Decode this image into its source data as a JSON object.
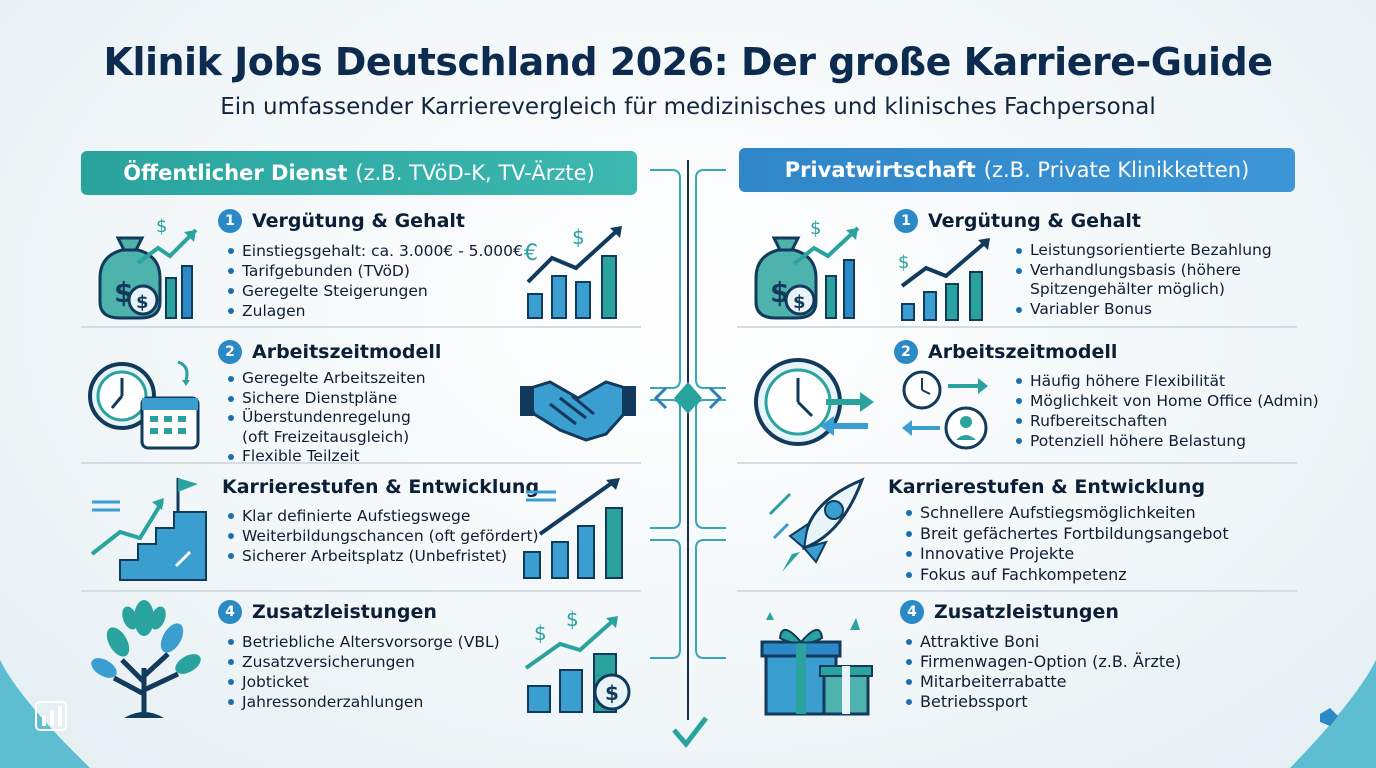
{
  "title": "Klinik Jobs Deutschland 2026: Der große Karriere-Guide",
  "subtitle": "Ein umfassender Karrierevergleich für medizinisches und klinisches Fachpersonal",
  "left": {
    "header_bold": "Öffentlicher Dienst",
    "header_light": "(z.B. TVöD-K, TV-Ärzte)",
    "sections": [
      {
        "num": "1",
        "title": "Vergütung & Gehalt",
        "bullets": [
          "Einstiegsgehalt: ca. 3.000€ - 5.000€",
          "Tarifgebunden (TVöD)",
          "Geregelte Steigerungen",
          "Zulagen"
        ]
      },
      {
        "num": "2",
        "title": "Arbeitszeitmodell",
        "bullets": [
          "Geregelte Arbeitszeiten",
          "Sichere Dienstpläne",
          "Überstundenregelung",
          "(oft Freizeitausgleich)",
          "Flexible Teilzeit"
        ]
      },
      {
        "num": "",
        "title": "Karrierestufen & Entwicklung",
        "bullets": [
          "Klar definierte Aufstiegswege",
          "Weiterbildungschancen (oft gefördert)",
          "Sicherer Arbeitsplatz (Unbefristet)"
        ]
      },
      {
        "num": "4",
        "title": "Zusatzleistungen",
        "bullets": [
          "Betriebliche Altersvorsorge (VBL)",
          "Zusatzversicherungen",
          "Jobticket",
          "Jahressonderzahlungen"
        ]
      }
    ]
  },
  "right": {
    "header_bold": "Privatwirtschaft",
    "header_light": "(z.B. Private Klinikketten)",
    "sections": [
      {
        "num": "1",
        "title": "Vergütung & Gehalt",
        "bullets": [
          "Leistungsorientierte Bezahlung",
          "Verhandlungsbasis (höhere",
          "Spitzengehälter möglich)",
          "Variabler Bonus"
        ]
      },
      {
        "num": "2",
        "title": "Arbeitszeitmodell",
        "bullets": [
          "Häufig höhere Flexibilität",
          "Möglichkeit von Home Office (Admin)",
          "Rufbereitschaften",
          "Potenziell höhere Belastung"
        ]
      },
      {
        "num": "",
        "title": "Karrierestufen & Entwicklung",
        "bullets": [
          "Schnellere Aufstiegsmöglichkeiten",
          "Breit gefächertes Fortbildungsangebot",
          "Innovative Projekte",
          "Fokus auf Fachkompetenz"
        ]
      },
      {
        "num": "4",
        "title": "Zusatzleistungen",
        "bullets": [
          "Attraktive Boni",
          "Firmenwagen-Option (z.B. Ärzte)",
          "Mitarbeiterrabatte",
          "Betriebssport"
        ]
      }
    ]
  },
  "icons": {
    "euro_symbol": "€",
    "dollar_symbol": "$"
  },
  "colors": {
    "teal": "#2aa39e",
    "blue": "#2f86c8",
    "navy": "#0d2a4f",
    "badge": "#2b89c6"
  }
}
